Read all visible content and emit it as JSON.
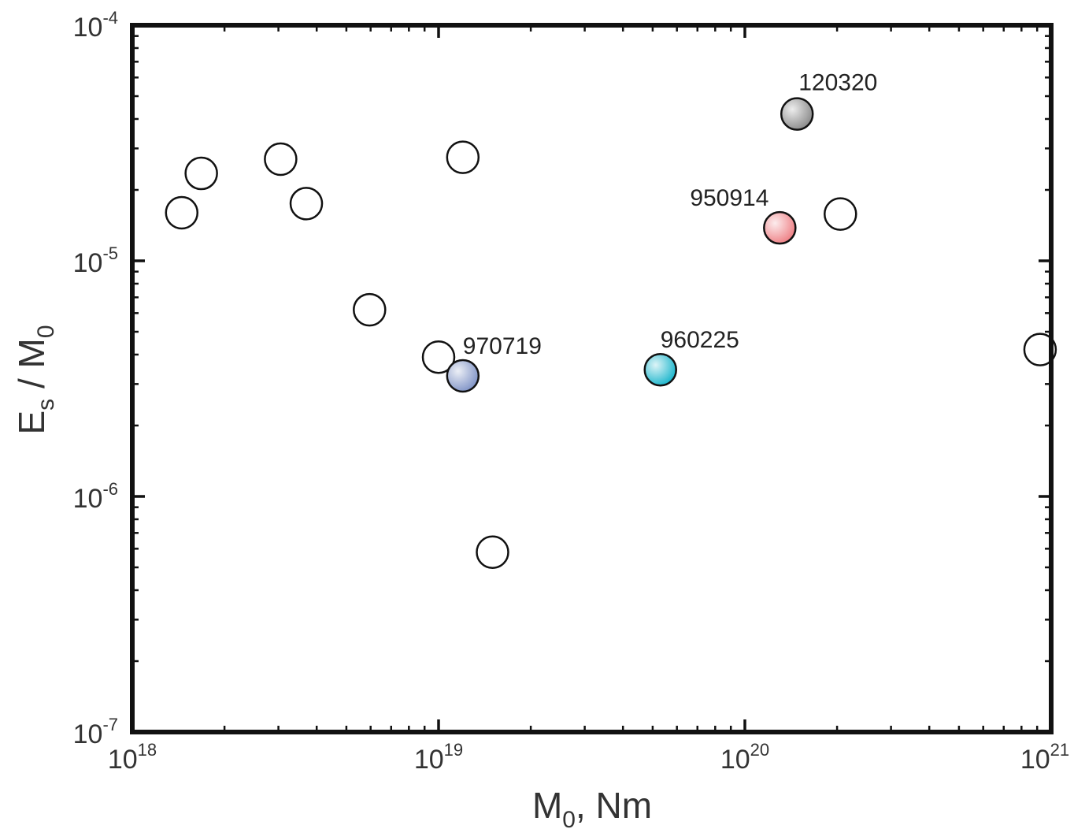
{
  "chart_data": {
    "type": "scatter",
    "x_scale": "log",
    "y_scale": "log",
    "xlim": [
      1e+18,
      1e+21
    ],
    "ylim": [
      1e-07,
      0.0001
    ],
    "x_ticks": [
      {
        "mantissa": "10",
        "exponent": "18",
        "value": 1e+18
      },
      {
        "mantissa": "10",
        "exponent": "19",
        "value": 1e+19
      },
      {
        "mantissa": "10",
        "exponent": "20",
        "value": 1e+20
      },
      {
        "mantissa": "10",
        "exponent": "21",
        "value": 1e+21
      }
    ],
    "y_ticks": [
      {
        "mantissa": "10",
        "exponent": "-4",
        "value": 0.0001
      },
      {
        "mantissa": "10",
        "exponent": "-5",
        "value": 1e-05
      },
      {
        "mantissa": "10",
        "exponent": "-6",
        "value": 1e-06
      },
      {
        "mantissa": "10",
        "exponent": "-7",
        "value": 1e-07
      }
    ],
    "xlabel": {
      "base": "M",
      "sub": "0",
      "rest": ", Nm"
    },
    "ylabel": {
      "base": "E",
      "sub": "s",
      "mid": " / M",
      "sub2": "0"
    },
    "points": [
      {
        "x": 1.45e+18,
        "y": 1.6e-05,
        "fill": "none"
      },
      {
        "x": 1.68e+18,
        "y": 2.35e-05,
        "fill": "none"
      },
      {
        "x": 3.05e+18,
        "y": 2.7e-05,
        "fill": "none"
      },
      {
        "x": 3.7e+18,
        "y": 1.75e-05,
        "fill": "none"
      },
      {
        "x": 5.95e+18,
        "y": 6.2e-06,
        "fill": "none"
      },
      {
        "x": 1e+19,
        "y": 3.9e-06,
        "fill": "none"
      },
      {
        "x": 1.2e+19,
        "y": 2.75e-05,
        "fill": "none"
      },
      {
        "x": 1.5e+19,
        "y": 5.8e-07,
        "fill": "none"
      },
      {
        "x": 2.05e+20,
        "y": 1.58e-05,
        "fill": "none"
      },
      {
        "x": 9.2e+20,
        "y": 4.2e-06,
        "fill": "none"
      },
      {
        "x": 1.2e+19,
        "y": 3.25e-06,
        "fill": "#7f93c6",
        "label": "970719"
      },
      {
        "x": 5.3e+19,
        "y": 3.45e-06,
        "fill": "#19b5cc",
        "label": "960225"
      },
      {
        "x": 1.3e+20,
        "y": 1.38e-05,
        "fill": "#ee7f84",
        "label": "950914"
      },
      {
        "x": 1.48e+20,
        "y": 4.2e-05,
        "fill": "#8a8a8a",
        "label": "120320"
      }
    ],
    "colors": {
      "970719": "#7f93c6",
      "960225": "#19b5cc",
      "950914": "#ee7f84",
      "120320": "#8a8a8a"
    },
    "grid": false,
    "legend": "none"
  }
}
